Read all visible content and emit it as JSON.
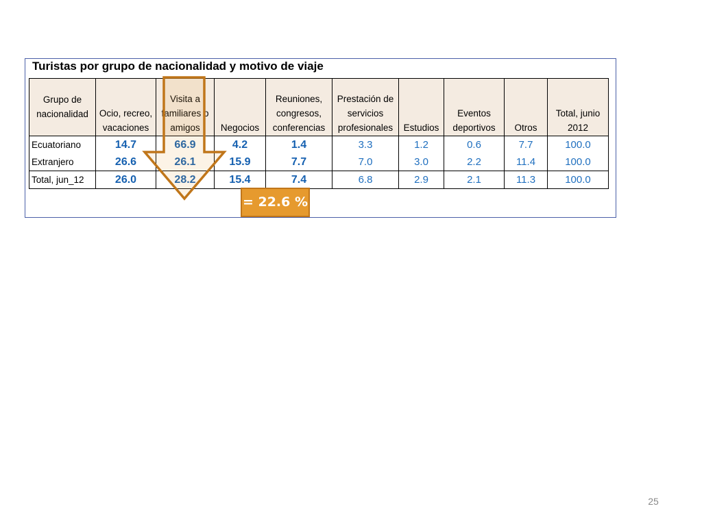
{
  "table": {
    "title": "Turistas por grupo de nacionalidad y motivo de viaje",
    "headers": [
      "Grupo de nacionalidad",
      "Ocio, recreo, vacaciones",
      "Visita a familiares o amigos",
      "Negocios",
      "Reuniones, congresos, conferencias",
      "Prestación de servicios profesionales",
      "Estudios",
      "Eventos deportivos",
      "Otros",
      "Total, junio 2012"
    ],
    "rows": [
      {
        "label": "Ecuatoriano",
        "values": [
          "14.7",
          "66.9",
          "4.2",
          "1.4",
          "3.3",
          "1.2",
          "0.6",
          "7.7",
          "100.0"
        ]
      },
      {
        "label": "Extranjero",
        "values": [
          "26.6",
          "26.1",
          "15.9",
          "7.7",
          "7.0",
          "3.0",
          "2.2",
          "11.4",
          "100.0"
        ]
      },
      {
        "label": "Total, jun_12",
        "values": [
          "26.0",
          "28.2",
          "15.4",
          "7.4",
          "6.8",
          "2.9",
          "2.1",
          "11.3",
          "100.0"
        ]
      }
    ]
  },
  "callout": {
    "text": "= 22.6 %",
    "arrow_color": "#c0761a",
    "box_color": "#e69a2e"
  },
  "page_number": "25"
}
